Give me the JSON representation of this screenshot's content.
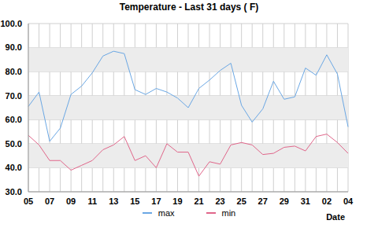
{
  "chart_data": {
    "type": "line",
    "title": "Temperature - Last 31 days ( F)",
    "x_label": "Date",
    "categories": [
      "05",
      null,
      "07",
      null,
      "09",
      null,
      "11",
      null,
      "13",
      null,
      "15",
      null,
      "17",
      null,
      "19",
      null,
      "21",
      null,
      "23",
      null,
      "25",
      null,
      "27",
      null,
      "29",
      null,
      "31",
      null,
      "02",
      null,
      "04"
    ],
    "series": [
      {
        "name": "max",
        "color": "#6aa7e4",
        "values": [
          65.5,
          71.5,
          51,
          56.5,
          70.5,
          74,
          79.5,
          86.5,
          88.5,
          87.5,
          72.5,
          70.5,
          73,
          71.5,
          69,
          65,
          73,
          76.5,
          80.5,
          83.5,
          66,
          59,
          64.5,
          76,
          68.5,
          69.5,
          81.5,
          78.5,
          87,
          79,
          57
        ]
      },
      {
        "name": "min",
        "color": "#e0668a",
        "values": [
          53.5,
          49.5,
          43,
          43,
          39,
          41,
          43,
          47.5,
          49.5,
          53,
          43,
          45,
          40,
          50,
          46.5,
          46.5,
          36.5,
          42.5,
          41.5,
          49.5,
          50.5,
          49.5,
          45.5,
          46,
          48.5,
          49,
          47,
          53,
          54,
          50.5,
          46
        ]
      }
    ],
    "ylim": [
      30,
      100
    ],
    "yticks": [
      {
        "value": 30,
        "label": "30.0"
      },
      {
        "value": 40,
        "label": "40.0"
      },
      {
        "value": 50,
        "label": "50.0"
      },
      {
        "value": 60,
        "label": "60.0"
      },
      {
        "value": 70,
        "label": "70.0"
      },
      {
        "value": 80,
        "label": "80.0"
      },
      {
        "value": 90,
        "label": "90.0"
      },
      {
        "value": 100,
        "label": "100.0"
      }
    ],
    "grid": true,
    "legend": "bottom"
  }
}
